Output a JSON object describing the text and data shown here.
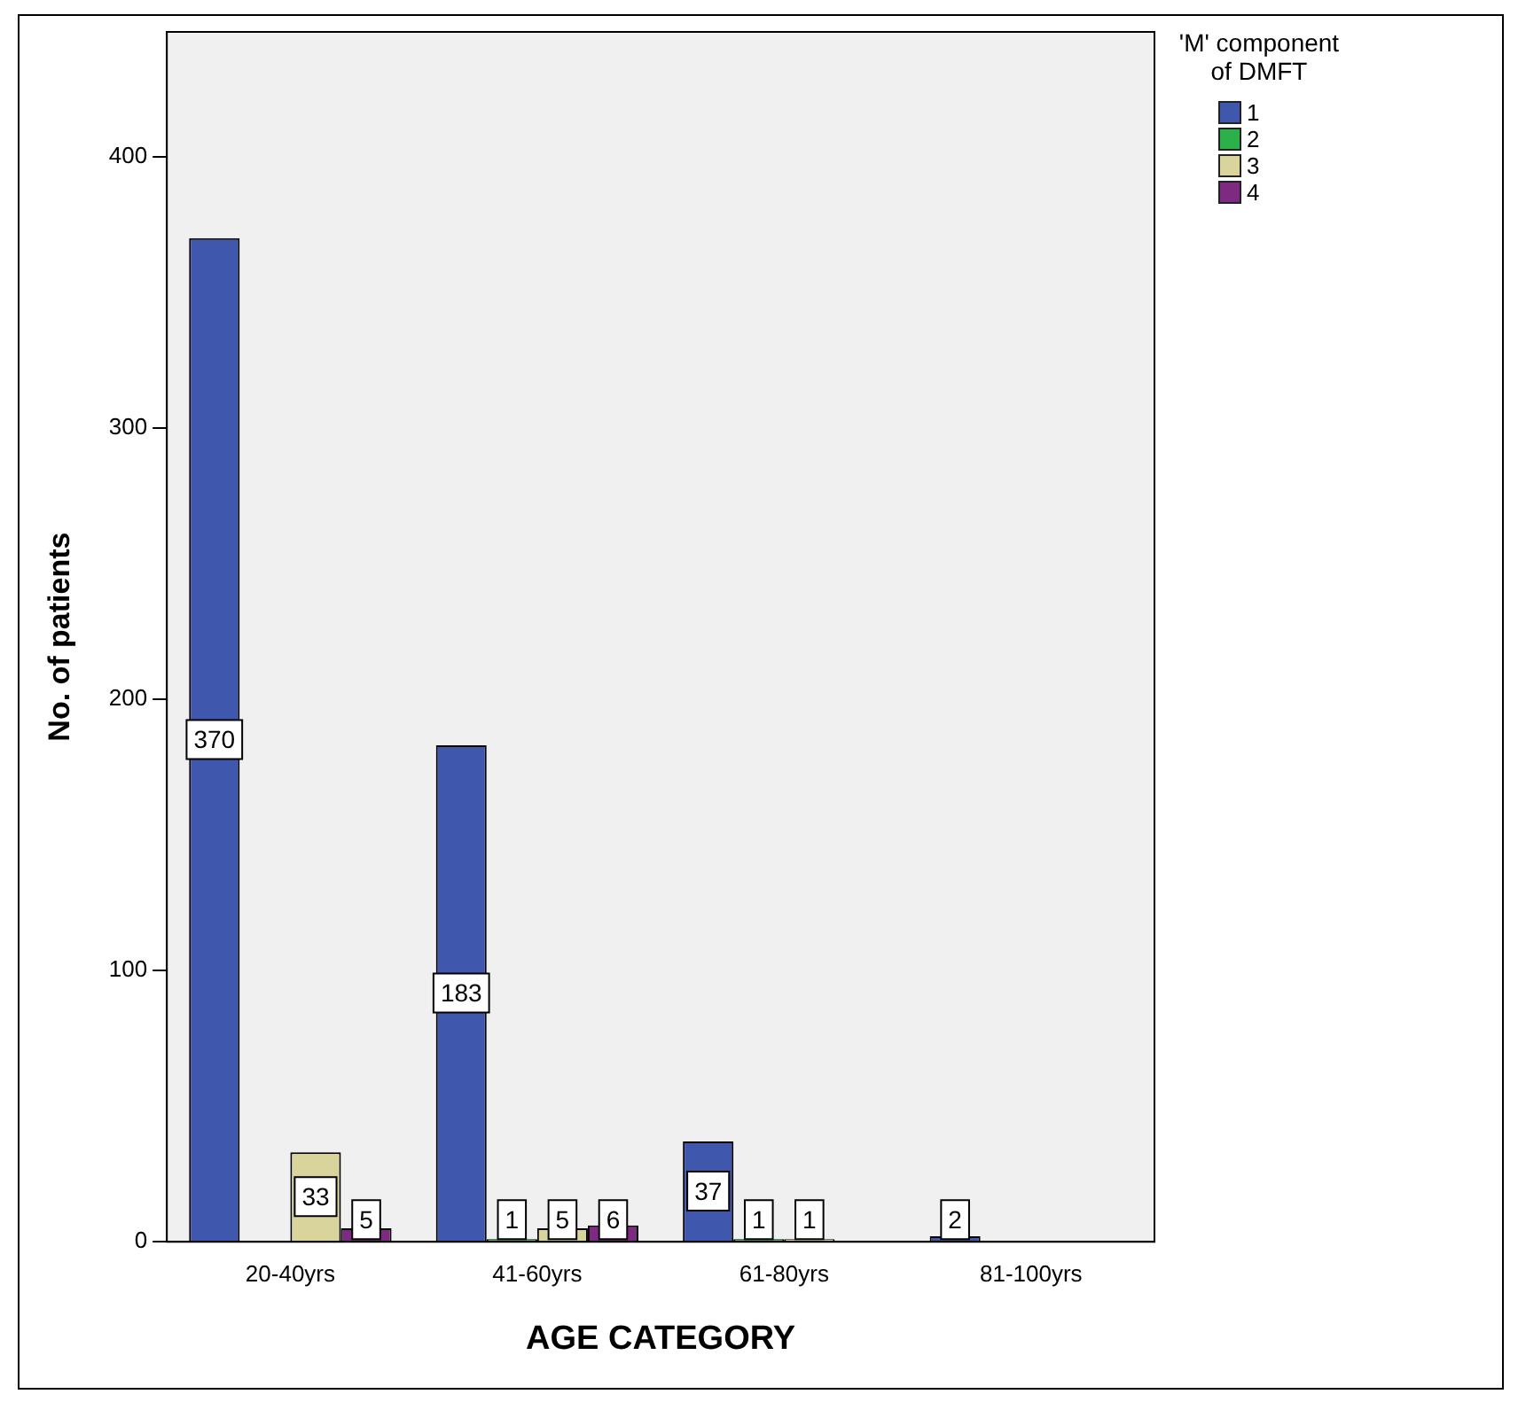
{
  "chart_data": {
    "type": "bar",
    "xlabel": "AGE CATEGORY",
    "ylabel": "No. of patients",
    "legend_title": "'M' component of DMFT",
    "categories": [
      "20-40yrs",
      "41-60yrs",
      "61-80yrs",
      "81-100yrs"
    ],
    "series": [
      {
        "name": "1",
        "color": "#3f58ad",
        "values": [
          370,
          183,
          37,
          2
        ]
      },
      {
        "name": "2",
        "color": "#2bb04a",
        "values": [
          null,
          1,
          1,
          null
        ]
      },
      {
        "name": "3",
        "color": "#d8d49c",
        "values": [
          33,
          5,
          1,
          null
        ]
      },
      {
        "name": "4",
        "color": "#7e2a83",
        "values": [
          5,
          6,
          null,
          null
        ]
      }
    ],
    "ylim": [
      0,
      446
    ],
    "yticks": [
      0,
      100,
      200,
      300,
      400
    ],
    "grid": false,
    "legend": "top right",
    "data_labels": true
  }
}
